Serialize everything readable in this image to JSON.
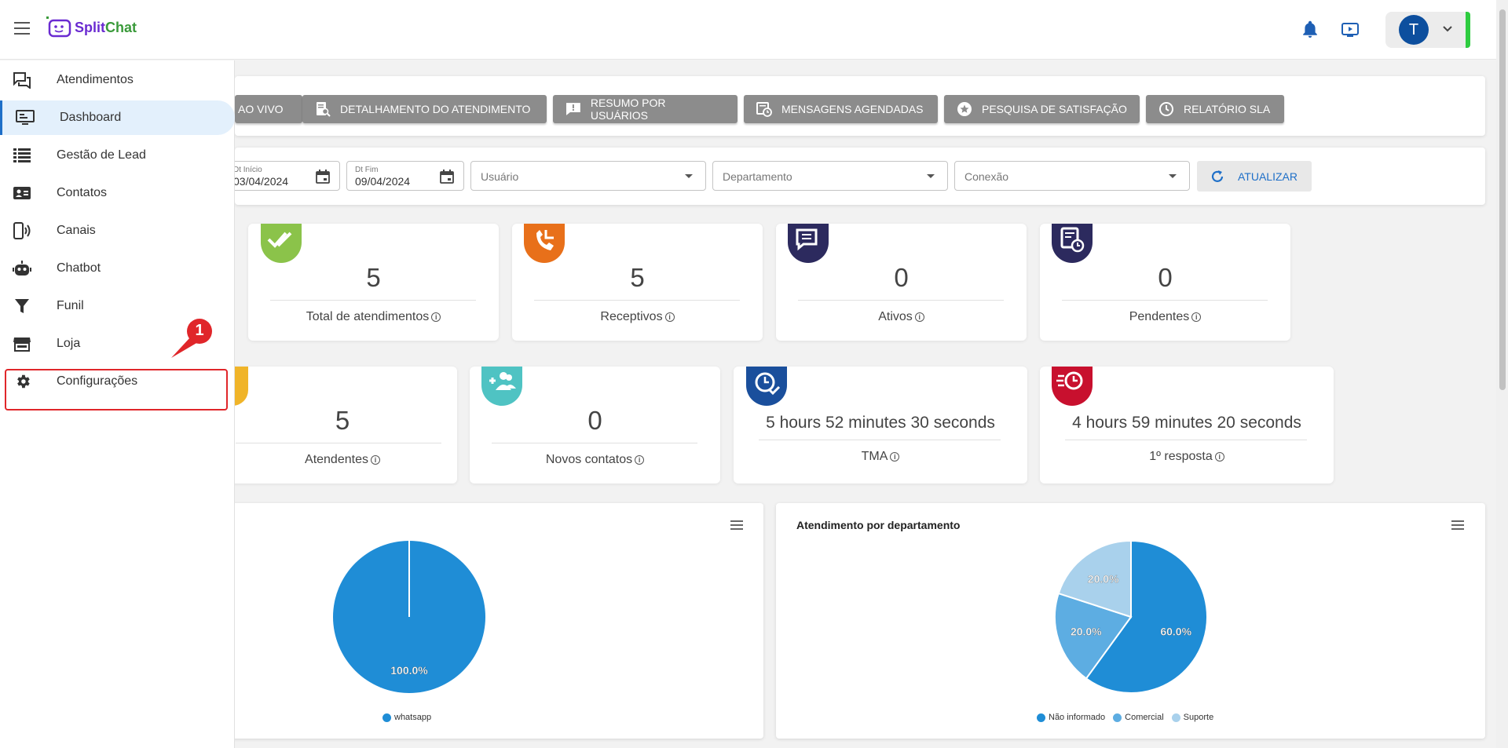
{
  "brand": {
    "name_part1": "Split",
    "name_part2": "Chat"
  },
  "user": {
    "initial": "T"
  },
  "sidebar": {
    "items": [
      {
        "label": "Atendimentos"
      },
      {
        "label": "Dashboard"
      },
      {
        "label": "Gestão de Lead"
      },
      {
        "label": "Contatos"
      },
      {
        "label": "Canais"
      },
      {
        "label": "Chatbot"
      },
      {
        "label": "Funil"
      },
      {
        "label": "Loja"
      },
      {
        "label": "Configurações"
      }
    ]
  },
  "annotation": {
    "step_number": "1"
  },
  "tabs": [
    {
      "label": "AO VIVO"
    },
    {
      "label": "DETALHAMENTO DO ATENDIMENTO"
    },
    {
      "label": "RESUMO POR USUÁRIOS"
    },
    {
      "label": "MENSAGENS AGENDADAS"
    },
    {
      "label": "PESQUISA DE SATISFAÇÃO"
    },
    {
      "label": "RELATÓRIO SLA"
    }
  ],
  "filters": {
    "start_label": "Dt Início",
    "start_value": "03/04/2024",
    "end_label": "Dt Fim",
    "end_value": "09/04/2024",
    "user_placeholder": "Usuário",
    "department_placeholder": "Departamento",
    "connection_placeholder": "Conexão",
    "refresh_label": "ATUALIZAR"
  },
  "stats_row1": [
    {
      "value": "5",
      "label": "Total de atendimentos",
      "color": "#8bc34a"
    },
    {
      "value": "5",
      "label": "Receptivos",
      "color": "#e8701a"
    },
    {
      "value": "0",
      "label": "Ativos",
      "color": "#2c2a5e"
    },
    {
      "value": "0",
      "label": "Pendentes",
      "color": "#2c2a5e"
    }
  ],
  "stats_row2": [
    {
      "value": "5",
      "label": "Atendentes",
      "color": "#f0b429"
    },
    {
      "value": "0",
      "label": "Novos contatos",
      "color": "#4fc3c3"
    },
    {
      "value": "5 hours 52 minutes 30 seconds",
      "label": "TMA",
      "color": "#1a4f9c"
    },
    {
      "value": "4 hours 59 minutes 20 seconds",
      "label": "1º resposta",
      "color": "#c8102e"
    }
  ],
  "chart_data": [
    {
      "type": "pie",
      "title": "",
      "categories": [
        "whatsapp"
      ],
      "values": [
        100.0
      ],
      "labels": [
        "100.0%"
      ],
      "colors": [
        "#1f8dd6"
      ],
      "legend": "bottom"
    },
    {
      "type": "pie",
      "title": "Atendimento por departamento",
      "categories": [
        "Não informado",
        "Comercial",
        "Suporte"
      ],
      "values": [
        60.0,
        20.0,
        20.0
      ],
      "labels": [
        "60.0%",
        "20.0%",
        "20.0%"
      ],
      "colors": [
        "#1f8dd6",
        "#5dade2",
        "#a9d1ec"
      ],
      "legend": "bottom"
    }
  ]
}
